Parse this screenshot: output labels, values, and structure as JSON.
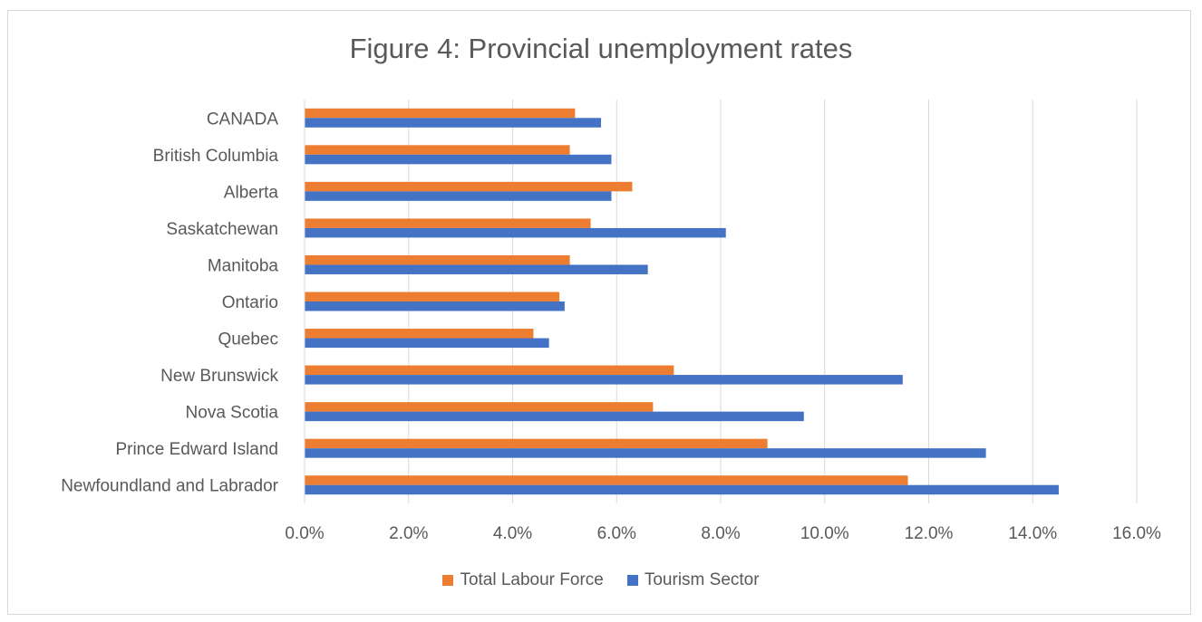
{
  "chart_data": {
    "type": "bar",
    "orientation": "horizontal",
    "title": "Figure 4: Provincial unemployment rates",
    "xlabel": "",
    "ylabel": "",
    "categories": [
      "CANADA",
      "British Columbia",
      "Alberta",
      "Saskatchewan",
      "Manitoba",
      "Ontario",
      "Quebec",
      "New Brunswick",
      "Nova Scotia",
      "Prince Edward Island",
      "Newfoundland and Labrador"
    ],
    "series": [
      {
        "name": "Total Labour Force",
        "color": "#ed7d31",
        "values": [
          5.2,
          5.1,
          6.3,
          5.5,
          5.1,
          4.9,
          4.4,
          7.1,
          6.7,
          8.9,
          11.6
        ]
      },
      {
        "name": "Tourism Sector",
        "color": "#4472c4",
        "values": [
          5.7,
          5.9,
          5.9,
          8.1,
          6.6,
          5.0,
          4.7,
          11.5,
          9.6,
          13.1,
          14.5
        ]
      }
    ],
    "xlim": [
      0,
      16
    ],
    "x_ticks": [
      "0.0%",
      "2.0%",
      "4.0%",
      "6.0%",
      "8.0%",
      "10.0%",
      "12.0%",
      "14.0%",
      "16.0%"
    ],
    "grid": true,
    "legend_position": "bottom"
  }
}
